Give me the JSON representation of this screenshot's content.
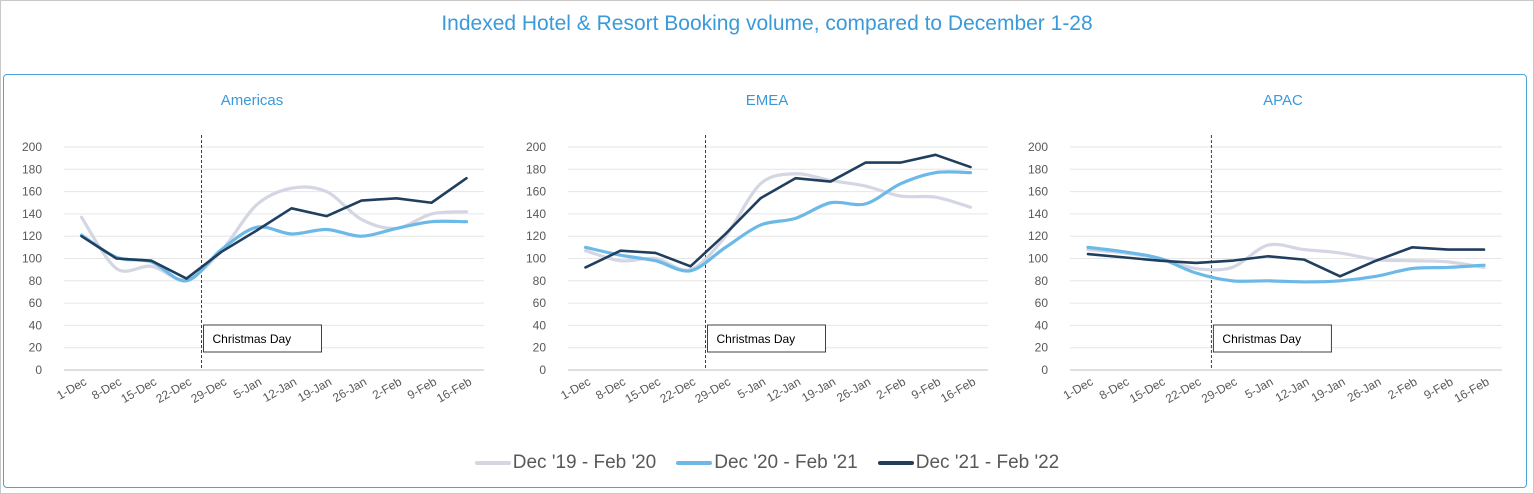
{
  "title": "Indexed Hotel & Resort Booking volume, compared to December 1-28",
  "legend": [
    {
      "label": "Dec '19 - Feb '20",
      "color": "#d4d6e4"
    },
    {
      "label": "Dec '20 - Feb '21",
      "color": "#6cb9e8"
    },
    {
      "label": "Dec '21 - Feb '22",
      "color": "#203f5f"
    }
  ],
  "chart_data": [
    {
      "type": "line",
      "title": "Americas",
      "categories": [
        "1-Dec",
        "8-Dec",
        "15-Dec",
        "22-Dec",
        "29-Dec",
        "5-Jan",
        "12-Jan",
        "19-Jan",
        "26-Jan",
        "2-Feb",
        "9-Feb",
        "16-Feb"
      ],
      "ylim": [
        0,
        200
      ],
      "yticks": [
        0,
        20,
        40,
        60,
        80,
        100,
        120,
        140,
        160,
        180,
        200
      ],
      "grid": true,
      "annotation": {
        "label": "Christmas Day",
        "x": "25-Dec"
      },
      "series": [
        {
          "name": "Dec '19 - Feb '20",
          "values": [
            137,
            91,
            93,
            81,
            107,
            148,
            163,
            160,
            135,
            127,
            140,
            142
          ]
        },
        {
          "name": "Dec '20 - Feb '21",
          "values": [
            121,
            101,
            97,
            80,
            108,
            128,
            122,
            126,
            120,
            127,
            133,
            133
          ]
        },
        {
          "name": "Dec '21 - Feb '22",
          "values": [
            120,
            100,
            98,
            82,
            106,
            125,
            145,
            138,
            152,
            154,
            150,
            172
          ]
        }
      ]
    },
    {
      "type": "line",
      "title": "EMEA",
      "categories": [
        "1-Dec",
        "8-Dec",
        "15-Dec",
        "22-Dec",
        "29-Dec",
        "5-Jan",
        "12-Jan",
        "19-Jan",
        "26-Jan",
        "2-Feb",
        "9-Feb",
        "16-Feb"
      ],
      "ylim": [
        0,
        200
      ],
      "yticks": [
        0,
        20,
        40,
        60,
        80,
        100,
        120,
        140,
        160,
        180,
        200
      ],
      "grid": true,
      "annotation": {
        "label": "Christmas Day",
        "x": "25-Dec"
      },
      "series": [
        {
          "name": "Dec '19 - Feb '20",
          "values": [
            107,
            98,
            100,
            90,
            120,
            167,
            176,
            170,
            165,
            156,
            155,
            146
          ]
        },
        {
          "name": "Dec '20 - Feb '21",
          "values": [
            110,
            103,
            98,
            89,
            110,
            130,
            136,
            150,
            149,
            167,
            177,
            177
          ]
        },
        {
          "name": "Dec '21 - Feb '22",
          "values": [
            92,
            107,
            105,
            93,
            122,
            154,
            172,
            169,
            186,
            186,
            193,
            182
          ]
        }
      ]
    },
    {
      "type": "line",
      "title": "APAC",
      "categories": [
        "1-Dec",
        "8-Dec",
        "15-Dec",
        "22-Dec",
        "29-Dec",
        "5-Jan",
        "12-Jan",
        "19-Jan",
        "26-Jan",
        "2-Feb",
        "9-Feb",
        "16-Feb"
      ],
      "ylim": [
        0,
        200
      ],
      "yticks": [
        0,
        20,
        40,
        60,
        80,
        100,
        120,
        140,
        160,
        180,
        200
      ],
      "grid": true,
      "annotation": {
        "label": "Christmas Day",
        "x": "25-Dec"
      },
      "series": [
        {
          "name": "Dec '19 - Feb '20",
          "values": [
            108,
            105,
            100,
            91,
            92,
            112,
            108,
            105,
            99,
            98,
            97,
            92
          ]
        },
        {
          "name": "Dec '20 - Feb '21",
          "values": [
            110,
            106,
            100,
            87,
            80,
            80,
            79,
            80,
            84,
            91,
            92,
            94
          ]
        },
        {
          "name": "Dec '21 - Feb '22",
          "values": [
            104,
            101,
            98,
            96,
            98,
            102,
            99,
            84,
            98,
            110,
            108,
            108
          ]
        }
      ]
    }
  ]
}
